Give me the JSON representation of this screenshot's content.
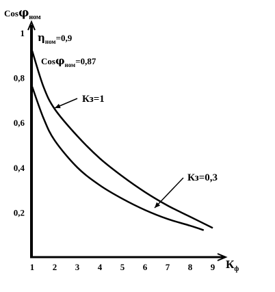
{
  "chart_data": {
    "type": "line",
    "title": "",
    "ylabel": {
      "main": "Cos",
      "greek": "φ",
      "sub": "ном"
    },
    "xlabel": {
      "main": "К",
      "sub": "ф"
    },
    "x_ticks": [
      "1",
      "2",
      "3",
      "4",
      "5",
      "6",
      "7",
      "8",
      "9"
    ],
    "y_ticks": [
      "0,2",
      "0,4",
      "0,6",
      "0,8",
      "1"
    ],
    "xlim": [
      1,
      9
    ],
    "ylim": [
      0,
      1
    ],
    "grid": false,
    "annotations": {
      "eta": {
        "greek": "η",
        "sub": "ном",
        "value": "=0,9"
      },
      "cos": {
        "main": "Cos",
        "greek": "φ",
        "sub": "ном",
        "value": "=0,87"
      }
    },
    "series": [
      {
        "name": "Кз=1",
        "x": [
          1.0,
          1.5,
          2.0,
          3.0,
          4.0,
          5.0,
          6.0,
          7.0,
          8.0,
          9.0
        ],
        "y": [
          0.92,
          0.76,
          0.66,
          0.54,
          0.44,
          0.36,
          0.29,
          0.23,
          0.18,
          0.13
        ]
      },
      {
        "name": "Кз=0,3",
        "x": [
          1.0,
          1.5,
          2.0,
          3.0,
          4.0,
          5.0,
          6.0,
          7.0,
          8.0,
          8.6
        ],
        "y": [
          0.76,
          0.62,
          0.52,
          0.4,
          0.32,
          0.26,
          0.21,
          0.17,
          0.14,
          0.12
        ]
      }
    ],
    "series_labels": [
      {
        "series": 0,
        "text": "Кз=1"
      },
      {
        "series": 1,
        "text": "Кз=0,3"
      }
    ]
  }
}
